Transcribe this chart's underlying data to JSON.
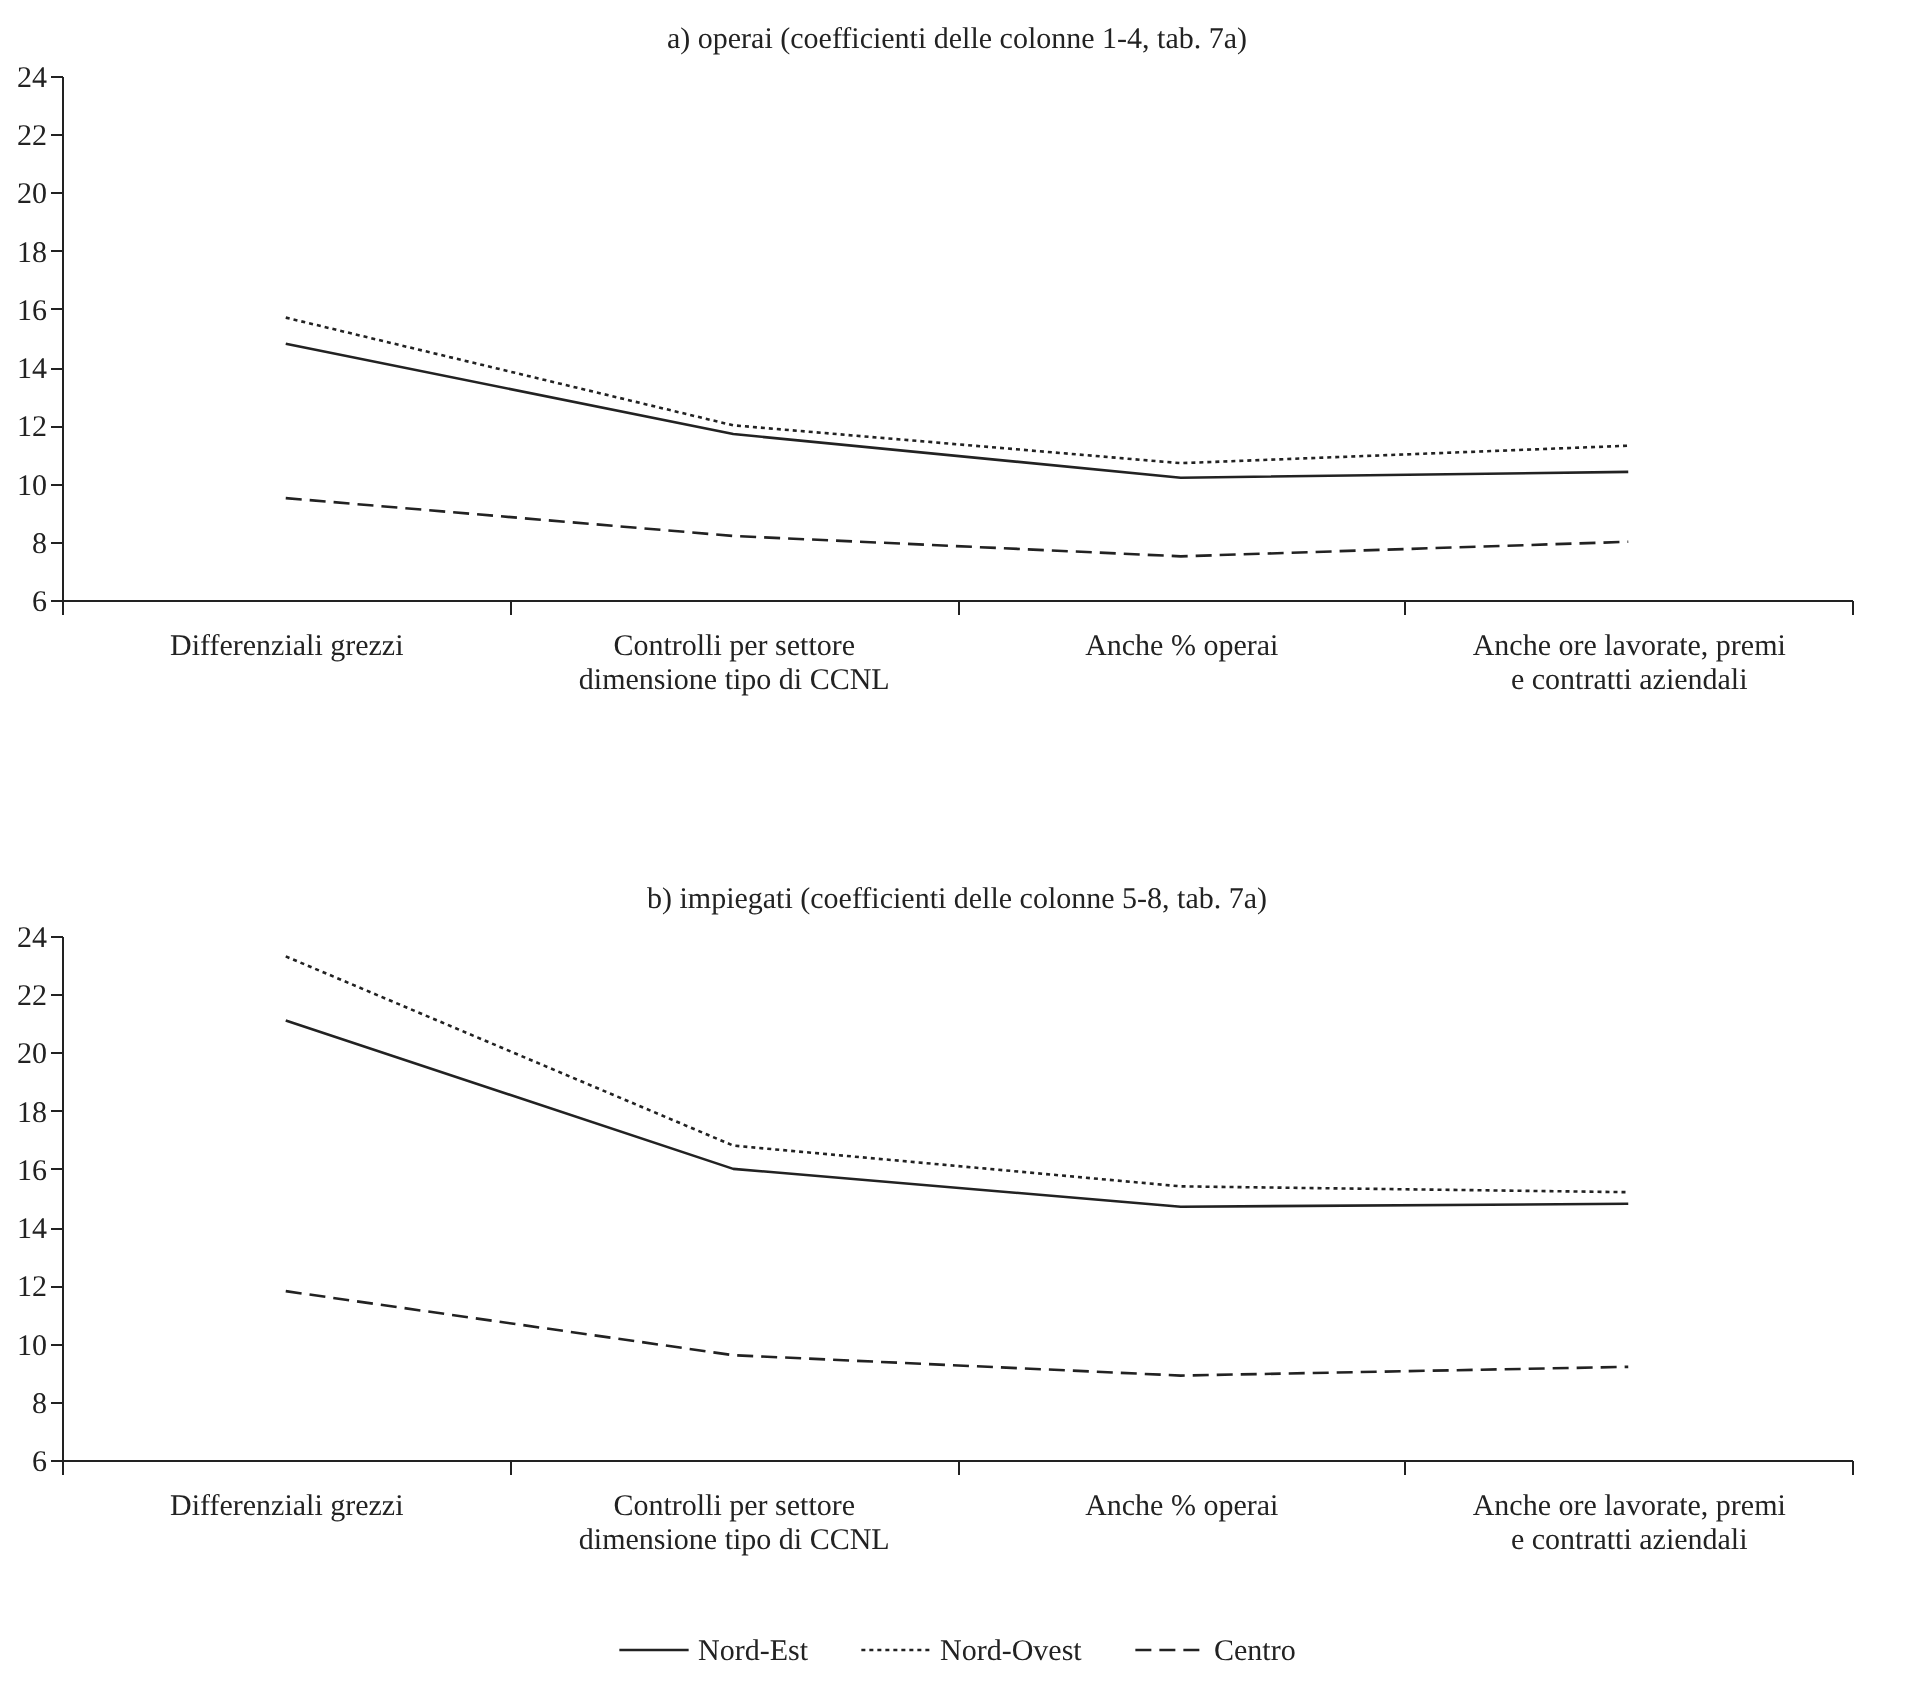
{
  "chart_data": [
    {
      "type": "line",
      "title": "a) operai (coefficienti delle colonne 1-4, tab. 7a)",
      "categories": [
        "Differenziali grezzi",
        "Controlli per settore\ndimensione tipo di CCNL",
        "Anche % operai",
        "Anche ore lavorate, premi\ne contratti aziendali"
      ],
      "ylim": [
        6,
        24
      ],
      "yticks": [
        6,
        8,
        10,
        12,
        14,
        16,
        18,
        20,
        22,
        24
      ],
      "grid": false,
      "legend": "bottom",
      "marker": "none",
      "series": [
        {
          "name": "Nord-Est",
          "color": "#222222",
          "line_style": "solid",
          "values": [
            14.8,
            11.7,
            10.2,
            10.4
          ]
        },
        {
          "name": "Nord-Ovest",
          "color": "#222222",
          "line_style": "dotted",
          "values": [
            15.7,
            12.0,
            10.7,
            11.3
          ]
        },
        {
          "name": "Centro",
          "color": "#222222",
          "line_style": "dashed",
          "values": [
            9.5,
            8.2,
            7.5,
            8.0
          ]
        }
      ]
    },
    {
      "type": "line",
      "title": "b) impiegati (coefficienti delle colonne 5-8, tab. 7a)",
      "categories": [
        "Differenziali grezzi",
        "Controlli per settore\ndimensione tipo di CCNL",
        "Anche % operai",
        "Anche ore lavorate, premi\ne contratti aziendali"
      ],
      "ylim": [
        6,
        24
      ],
      "yticks": [
        6,
        8,
        10,
        12,
        14,
        16,
        18,
        20,
        22,
        24
      ],
      "grid": false,
      "legend": "bottom",
      "marker": "none",
      "series": [
        {
          "name": "Nord-Est",
          "color": "#222222",
          "line_style": "solid",
          "values": [
            21.1,
            16.0,
            14.7,
            14.8
          ]
        },
        {
          "name": "Nord-Ovest",
          "color": "#222222",
          "line_style": "dotted",
          "values": [
            23.3,
            16.8,
            15.4,
            15.2
          ]
        },
        {
          "name": "Centro",
          "color": "#222222",
          "line_style": "dashed",
          "values": [
            11.8,
            9.6,
            8.9,
            9.2
          ]
        }
      ]
    }
  ]
}
